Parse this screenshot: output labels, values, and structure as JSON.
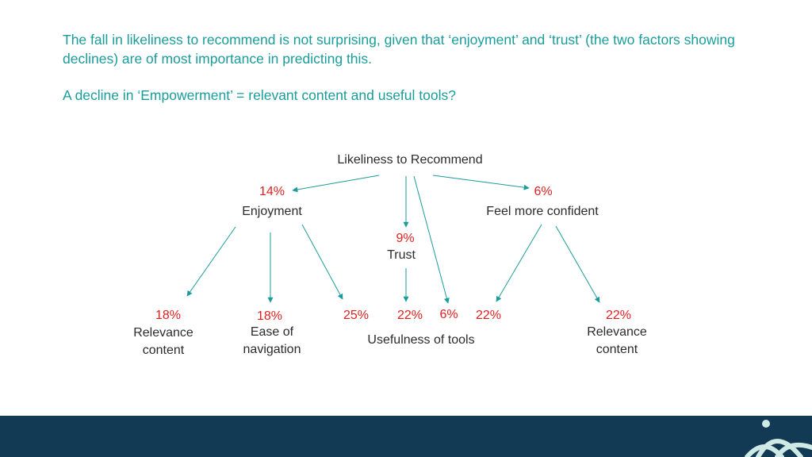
{
  "heading": {
    "line1": "The fall in likeliness to recommend is not surprising, given that ‘enjoyment’ and ‘trust’ (the two factors showing declines) are of most importance in predicting this.",
    "line2": "A decline in ‘Empowerment’ = relevant content and useful tools?"
  },
  "diagram": {
    "root": "Likeliness to Recommend",
    "enjoyment": {
      "pct": "14%",
      "label": "Enjoyment"
    },
    "trust": {
      "pct": "9%",
      "label": "Trust"
    },
    "confident": {
      "pct": "6%",
      "label": "Feel more confident"
    },
    "relevance_left": {
      "pct": "18%",
      "label": "Relevance content"
    },
    "ease": {
      "pct": "18%",
      "label": "Ease of navigation"
    },
    "usefulness": {
      "label": "Usefulness of tools",
      "pct_enjoyment": "25%",
      "pct_trust": "22%",
      "pct_root": "6%",
      "pct_confident": "22%"
    },
    "relevance_right": {
      "pct": "22%",
      "label": "Relevance content"
    }
  },
  "colors": {
    "heading": "#1a9c9a",
    "arrow": "#1a9c9a",
    "pct": "#e02020",
    "footer": "#133a55"
  }
}
